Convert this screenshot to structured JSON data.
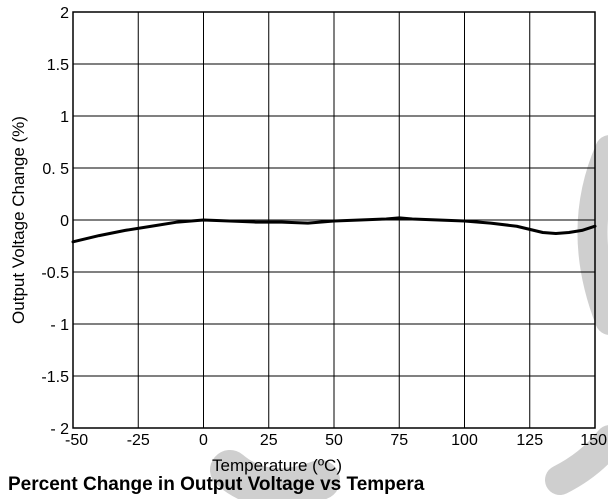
{
  "chart_data": {
    "type": "line",
    "title": "Percent Change in Output Voltage vs Tempera",
    "xlabel": "Temperature (ºC)",
    "ylabel": "Output Voltage Change (%)",
    "xlim": [
      -50,
      150
    ],
    "ylim": [
      -2,
      2
    ],
    "grid": true,
    "x_ticks": [
      -50,
      -25,
      0,
      25,
      50,
      75,
      100,
      125,
      150
    ],
    "x_tick_labels": [
      "-50",
      "-25",
      "0",
      "25",
      "50",
      "75",
      "100",
      "125",
      "150"
    ],
    "y_ticks": [
      2,
      1.5,
      1,
      0.5,
      0,
      -0.5,
      -1,
      -1.5,
      -2
    ],
    "y_tick_labels": [
      "2",
      "1.5",
      "1",
      "0. 5",
      "0",
      "-0.5",
      "- 1",
      "-1.5",
      "- 2"
    ],
    "series": [
      {
        "x": [
          -50,
          -40,
          -30,
          -20,
          -10,
          0,
          10,
          20,
          30,
          40,
          50,
          60,
          70,
          75,
          80,
          90,
          100,
          110,
          120,
          125,
          130,
          135,
          140,
          145,
          150
        ],
        "y": [
          -0.21,
          -0.15,
          -0.1,
          -0.06,
          -0.02,
          0.0,
          -0.01,
          -0.02,
          -0.02,
          -0.03,
          -0.01,
          0.0,
          0.01,
          0.02,
          0.01,
          0.0,
          -0.01,
          -0.03,
          -0.06,
          -0.09,
          -0.12,
          -0.13,
          -0.12,
          -0.1,
          -0.06
        ]
      }
    ]
  }
}
